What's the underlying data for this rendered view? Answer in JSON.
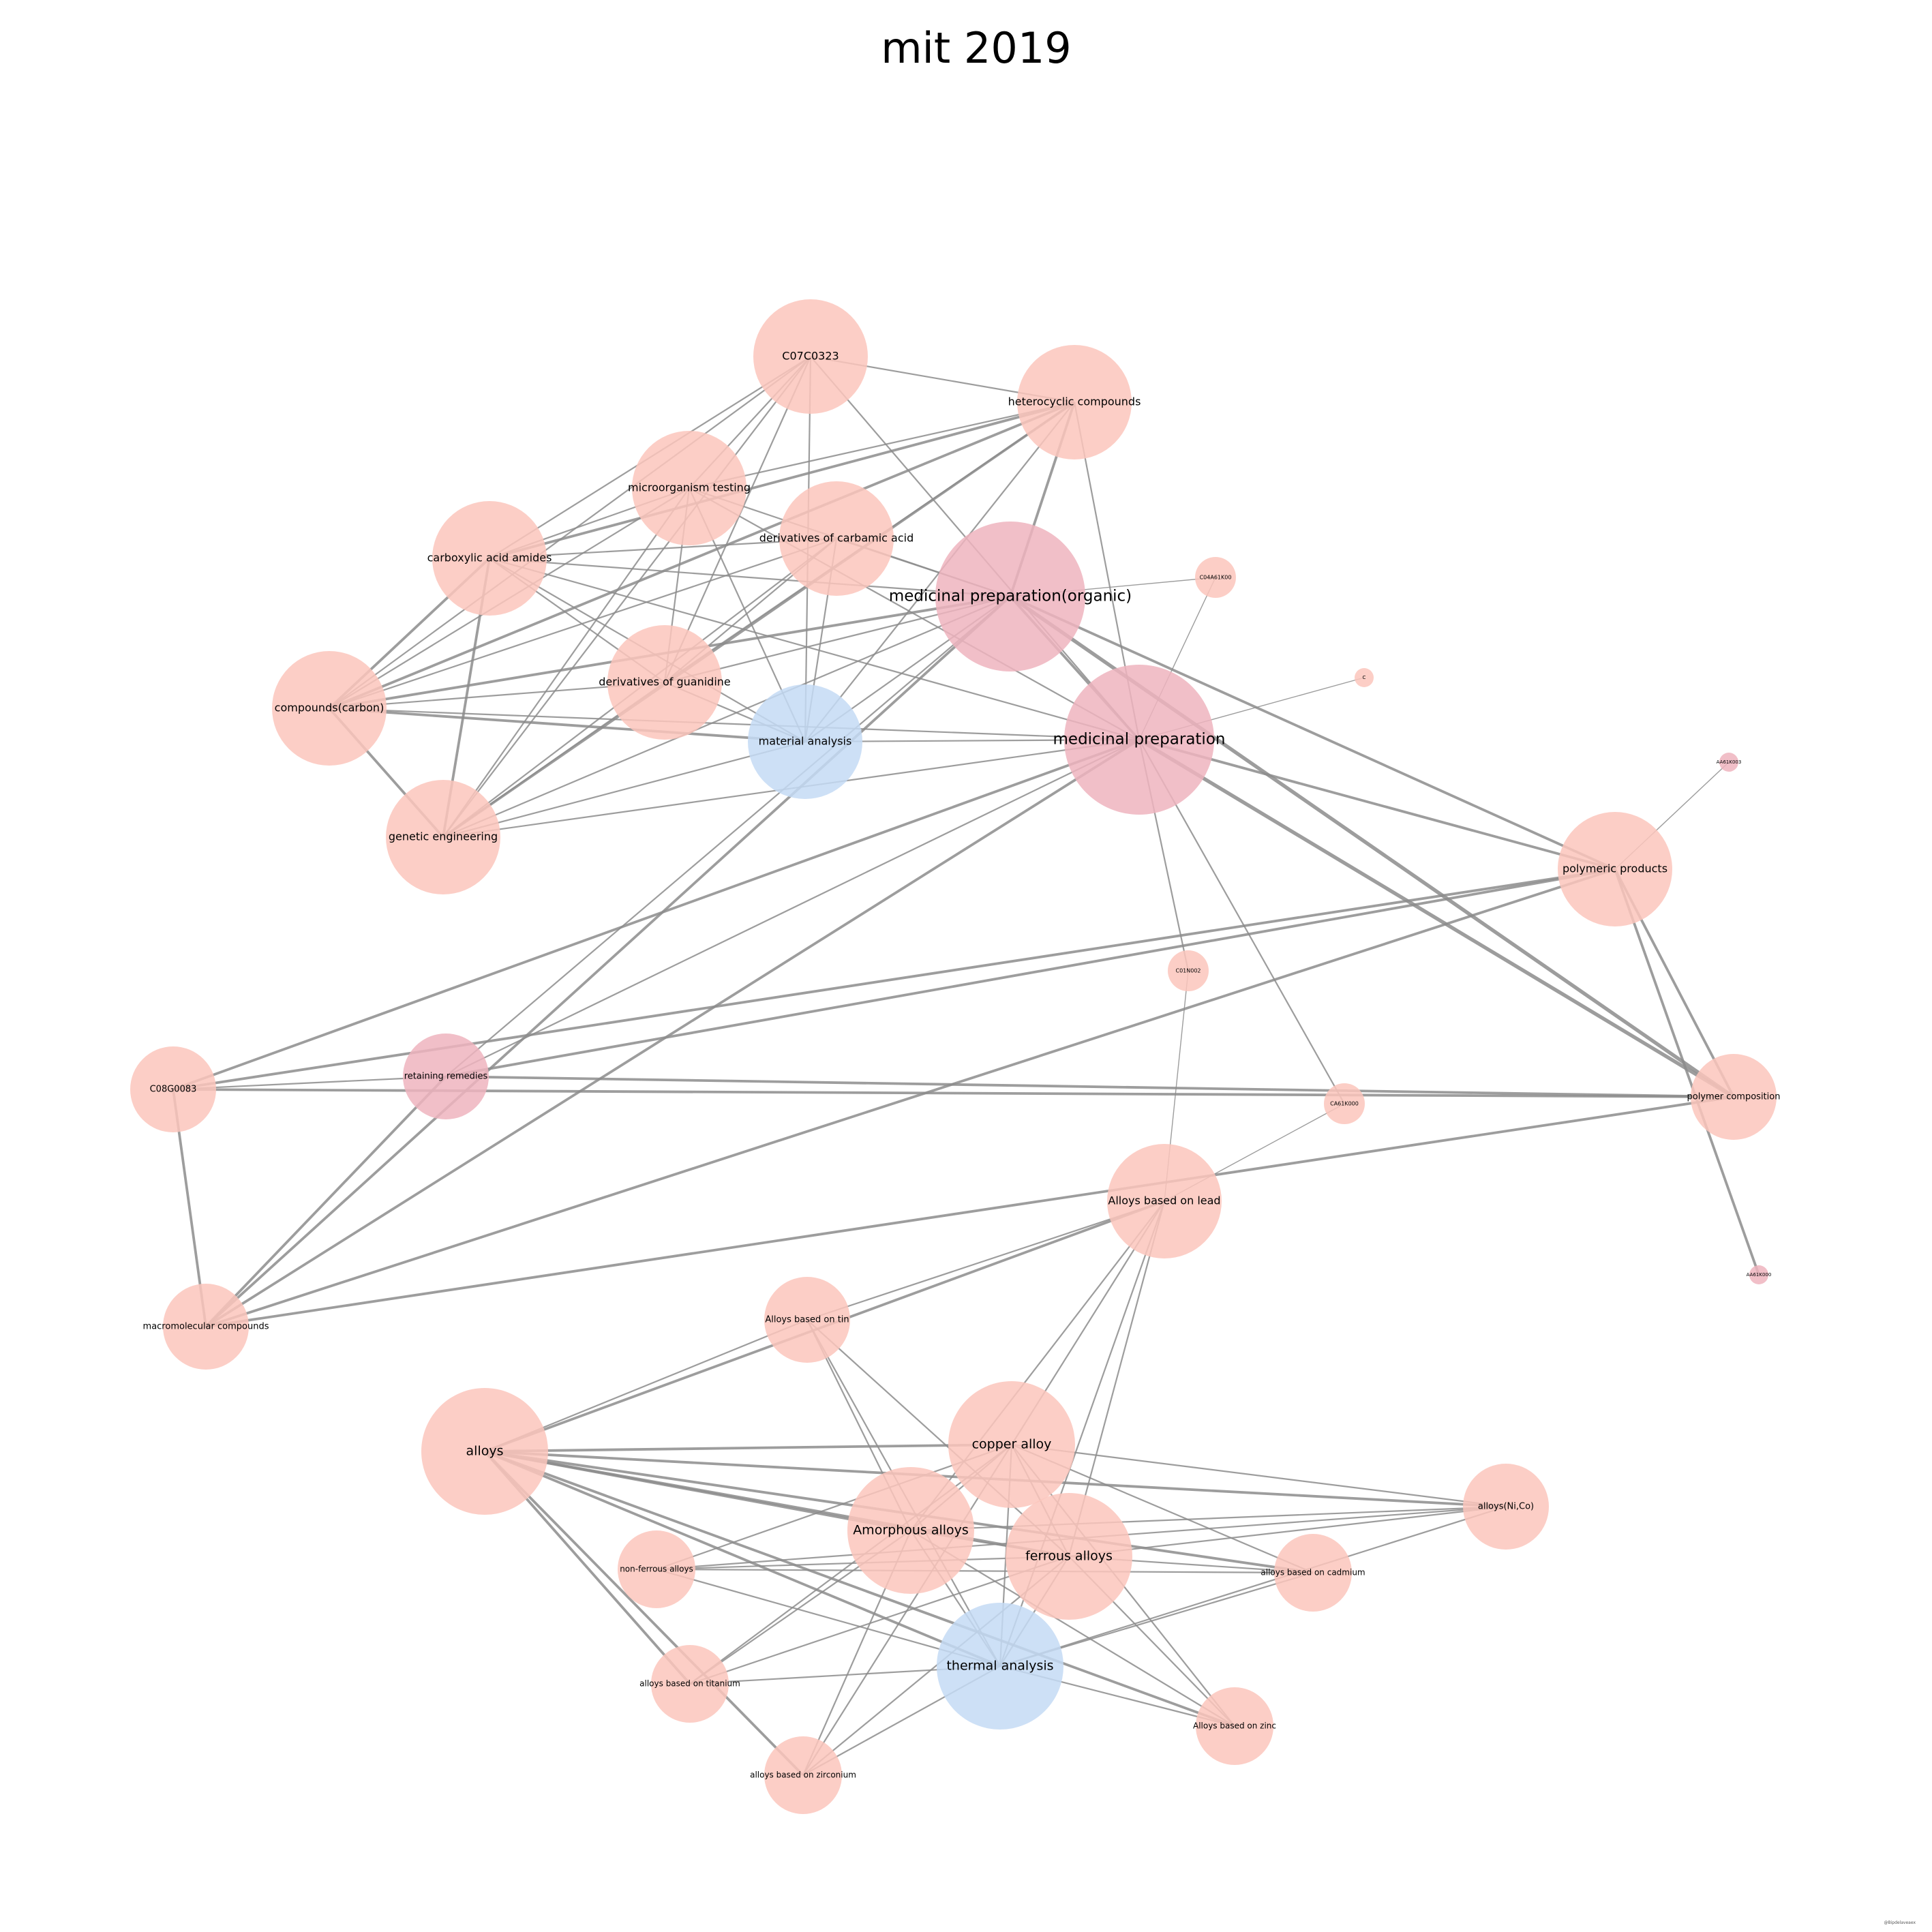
{
  "title": "mit 2019",
  "watermark": "@Bipdelaveaex",
  "palette": {
    "node_default": "#fbc5bc",
    "node_dark": "#eeb4be",
    "node_blue": "#c4daf4",
    "edge": "#8c8c8c"
  },
  "nodes": [
    {
      "id": "C07C0323",
      "label": "C07C0323",
      "color": "node_default",
      "size": 3
    },
    {
      "id": "heterocyclic",
      "label": "heterocyclic compounds",
      "color": "node_default",
      "size": 3
    },
    {
      "id": "microorganism",
      "label": "microorganism testing",
      "color": "node_default",
      "size": 3
    },
    {
      "id": "carbamic",
      "label": "derivatives of carbamic acid",
      "color": "node_default",
      "size": 3
    },
    {
      "id": "carboxylic",
      "label": "carboxylic acid amides",
      "color": "node_default",
      "size": 3
    },
    {
      "id": "medorganic",
      "label": "medicinal preparation(organic)",
      "color": "node_dark",
      "size": 5
    },
    {
      "id": "C04A61K00",
      "label": "C04A61K00",
      "color": "node_default",
      "size": 1
    },
    {
      "id": "C",
      "label": "C",
      "color": "node_default",
      "size": 0.5
    },
    {
      "id": "guanidine",
      "label": "derivatives of guanidine",
      "color": "node_default",
      "size": 3
    },
    {
      "id": "compcarbon",
      "label": "compounds(carbon)",
      "color": "node_default",
      "size": 3
    },
    {
      "id": "material",
      "label": "material analysis",
      "color": "node_blue",
      "size": 3
    },
    {
      "id": "medprep",
      "label": "medicinal preparation",
      "color": "node_dark",
      "size": 5
    },
    {
      "id": "AA61K003",
      "label": "AA61K003",
      "color": "node_dark",
      "size": 0.5
    },
    {
      "id": "genetic",
      "label": "genetic engineering",
      "color": "node_default",
      "size": 3
    },
    {
      "id": "polyproducts",
      "label": "polymeric products",
      "color": "node_default",
      "size": 3
    },
    {
      "id": "C01N002",
      "label": "C01N002",
      "color": "node_default",
      "size": 1
    },
    {
      "id": "C08G0083",
      "label": "C08G0083",
      "color": "node_default",
      "size": 2.5
    },
    {
      "id": "retaining",
      "label": "retaining remedies",
      "color": "node_dark",
      "size": 2.5
    },
    {
      "id": "CA61K000",
      "label": "CA61K000",
      "color": "node_default",
      "size": 1
    },
    {
      "id": "polycomp",
      "label": "polymer composition",
      "color": "node_default",
      "size": 2.5
    },
    {
      "id": "lead",
      "label": "Alloys based on lead",
      "color": "node_default",
      "size": 3
    },
    {
      "id": "AA61K000",
      "label": "AA61K000",
      "color": "node_dark",
      "size": 0.5
    },
    {
      "id": "macromol",
      "label": "macromolecular compounds",
      "color": "node_default",
      "size": 2.5
    },
    {
      "id": "tin",
      "label": "Alloys based on tin",
      "color": "node_default",
      "size": 2.5
    },
    {
      "id": "alloys",
      "label": "alloys",
      "color": "node_default",
      "size": 4
    },
    {
      "id": "copper",
      "label": "copper alloy",
      "color": "node_default",
      "size": 4
    },
    {
      "id": "alloysNiCo",
      "label": "alloys(Ni,Co)",
      "color": "node_default",
      "size": 2.5
    },
    {
      "id": "amorphous",
      "label": "Amorphous alloys",
      "color": "node_default",
      "size": 4
    },
    {
      "id": "ferrous",
      "label": "ferrous alloys",
      "color": "node_default",
      "size": 4
    },
    {
      "id": "nonferrous",
      "label": "non-ferrous alloys",
      "color": "node_default",
      "size": 2
    },
    {
      "id": "cadmium",
      "label": "alloys based on cadmium",
      "color": "node_default",
      "size": 2
    },
    {
      "id": "thermal",
      "label": "thermal analysis",
      "color": "node_blue",
      "size": 4
    },
    {
      "id": "titanium",
      "label": "alloys based on titanium",
      "color": "node_default",
      "size": 2
    },
    {
      "id": "zinc",
      "label": "Alloys based on zinc",
      "color": "node_default",
      "size": 2
    },
    {
      "id": "zirconium",
      "label": "alloys based on zirconium",
      "color": "node_default",
      "size": 2
    }
  ],
  "edges": [
    [
      "C07C0323",
      "heterocyclic",
      1
    ],
    [
      "C07C0323",
      "carboxylic",
      1
    ],
    [
      "C07C0323",
      "compcarbon",
      1
    ],
    [
      "C07C0323",
      "guanidine",
      1
    ],
    [
      "C07C0323",
      "material",
      1
    ],
    [
      "C07C0323",
      "medprep",
      1
    ],
    [
      "C07C0323",
      "genetic",
      1
    ],
    [
      "C07C0323",
      "microorganism",
      1
    ],
    [
      "heterocyclic",
      "carboxylic",
      2
    ],
    [
      "heterocyclic",
      "compcarbon",
      2
    ],
    [
      "heterocyclic",
      "medorganic",
      2
    ],
    [
      "heterocyclic",
      "medprep",
      1
    ],
    [
      "heterocyclic",
      "genetic",
      2
    ],
    [
      "heterocyclic",
      "material",
      1
    ],
    [
      "heterocyclic",
      "guanidine",
      1
    ],
    [
      "heterocyclic",
      "microorganism",
      1
    ],
    [
      "microorganism",
      "carboxylic",
      1
    ],
    [
      "microorganism",
      "compcarbon",
      1
    ],
    [
      "microorganism",
      "guanidine",
      1
    ],
    [
      "microorganism",
      "genetic",
      1
    ],
    [
      "microorganism",
      "medorganic",
      1
    ],
    [
      "microorganism",
      "material",
      1
    ],
    [
      "microorganism",
      "medprep",
      1
    ],
    [
      "carbamic",
      "compcarbon",
      1
    ],
    [
      "carbamic",
      "carboxylic",
      1
    ],
    [
      "carbamic",
      "medorganic",
      1
    ],
    [
      "carbamic",
      "material",
      1
    ],
    [
      "carbamic",
      "genetic",
      1
    ],
    [
      "carbamic",
      "guanidine",
      1
    ],
    [
      "carboxylic",
      "compcarbon",
      2
    ],
    [
      "carboxylic",
      "genetic",
      2
    ],
    [
      "carboxylic",
      "medorganic",
      1
    ],
    [
      "carboxylic",
      "material",
      1
    ],
    [
      "carboxylic",
      "guanidine",
      1
    ],
    [
      "carboxylic",
      "medprep",
      1
    ],
    [
      "medorganic",
      "compcarbon",
      2
    ],
    [
      "medorganic",
      "guanidine",
      1
    ],
    [
      "medorganic",
      "material",
      1
    ],
    [
      "medorganic",
      "medprep",
      2
    ],
    [
      "medorganic",
      "genetic",
      1
    ],
    [
      "medorganic",
      "retaining",
      1
    ],
    [
      "medorganic",
      "macromol",
      2
    ],
    [
      "medorganic",
      "polycomp",
      3
    ],
    [
      "medorganic",
      "polyproducts",
      2
    ],
    [
      "medorganic",
      "C04A61K00",
      0.5
    ],
    [
      "compcarbon",
      "material",
      2
    ],
    [
      "compcarbon",
      "medprep",
      1
    ],
    [
      "compcarbon",
      "genetic",
      2
    ],
    [
      "compcarbon",
      "guanidine",
      1
    ],
    [
      "guanidine",
      "material",
      1
    ],
    [
      "guanidine",
      "genetic",
      1
    ],
    [
      "material",
      "medprep",
      1
    ],
    [
      "material",
      "genetic",
      1
    ],
    [
      "medprep",
      "C04A61K00",
      0.5
    ],
    [
      "medprep",
      "C",
      0.5
    ],
    [
      "medprep",
      "polyproducts",
      2
    ],
    [
      "medprep",
      "polycomp",
      3
    ],
    [
      "medprep",
      "C08G0083",
      2
    ],
    [
      "medprep",
      "retaining",
      1
    ],
    [
      "medprep",
      "macromol",
      2
    ],
    [
      "medprep",
      "CA61K000",
      1
    ],
    [
      "medprep",
      "C01N002",
      1
    ],
    [
      "medprep",
      "genetic",
      1
    ],
    [
      "AA61K003",
      "polyproducts",
      0.5
    ],
    [
      "polyproducts",
      "C08G0083",
      2
    ],
    [
      "polyproducts",
      "retaining",
      2
    ],
    [
      "polyproducts",
      "polycomp",
      2
    ],
    [
      "polyproducts",
      "AA61K000",
      2
    ],
    [
      "polyproducts",
      "macromol",
      2
    ],
    [
      "C08G0083",
      "polycomp",
      2
    ],
    [
      "C08G0083",
      "macromol",
      2
    ],
    [
      "C08G0083",
      "retaining",
      1
    ],
    [
      "retaining",
      "polycomp",
      2
    ],
    [
      "retaining",
      "macromol",
      2
    ],
    [
      "polycomp",
      "macromol",
      2
    ],
    [
      "C01N002",
      "lead",
      0.5
    ],
    [
      "CA61K000",
      "lead",
      0.5
    ],
    [
      "lead",
      "alloys",
      2
    ],
    [
      "lead",
      "amorphous",
      1
    ],
    [
      "lead",
      "ferrous",
      1
    ],
    [
      "lead",
      "copper",
      1
    ],
    [
      "lead",
      "thermal",
      1
    ],
    [
      "lead",
      "tin",
      1
    ],
    [
      "tin",
      "amorphous",
      1
    ],
    [
      "tin",
      "ferrous",
      1
    ],
    [
      "tin",
      "thermal",
      1
    ],
    [
      "tin",
      "alloys",
      1
    ],
    [
      "alloys",
      "copper",
      2
    ],
    [
      "alloys",
      "amorphous",
      2
    ],
    [
      "alloys",
      "ferrous",
      2
    ],
    [
      "alloys",
      "thermal",
      2
    ],
    [
      "alloys",
      "alloysNiCo",
      2
    ],
    [
      "alloys",
      "cadmium",
      2
    ],
    [
      "alloys",
      "zinc",
      2
    ],
    [
      "alloys",
      "titanium",
      2
    ],
    [
      "alloys",
      "zirconium",
      2
    ],
    [
      "copper",
      "amorphous",
      1
    ],
    [
      "copper",
      "ferrous",
      1
    ],
    [
      "copper",
      "thermal",
      1
    ],
    [
      "copper",
      "alloysNiCo",
      1
    ],
    [
      "copper",
      "cadmium",
      1
    ],
    [
      "copper",
      "zinc",
      1
    ],
    [
      "copper",
      "nonferrous",
      1
    ],
    [
      "copper",
      "titanium",
      1
    ],
    [
      "copper",
      "zirconium",
      1
    ],
    [
      "amorphous",
      "ferrous",
      1
    ],
    [
      "amorphous",
      "thermal",
      1
    ],
    [
      "amorphous",
      "zinc",
      1
    ],
    [
      "amorphous",
      "titanium",
      1
    ],
    [
      "amorphous",
      "zirconium",
      1
    ],
    [
      "amorphous",
      "alloysNiCo",
      1
    ],
    [
      "ferrous",
      "thermal",
      1
    ],
    [
      "ferrous",
      "alloysNiCo",
      1
    ],
    [
      "ferrous",
      "cadmium",
      1
    ],
    [
      "ferrous",
      "zinc",
      1
    ],
    [
      "ferrous",
      "nonferrous",
      1
    ],
    [
      "ferrous",
      "titanium",
      1
    ],
    [
      "ferrous",
      "zirconium",
      1
    ],
    [
      "nonferrous",
      "thermal",
      1
    ],
    [
      "nonferrous",
      "alloysNiCo",
      1
    ],
    [
      "nonferrous",
      "cadmium",
      1
    ],
    [
      "thermal",
      "titanium",
      1
    ],
    [
      "thermal",
      "zirconium",
      1
    ],
    [
      "thermal",
      "zinc",
      1
    ],
    [
      "thermal",
      "cadmium",
      1
    ],
    [
      "thermal",
      "alloysNiCo",
      1
    ]
  ]
}
